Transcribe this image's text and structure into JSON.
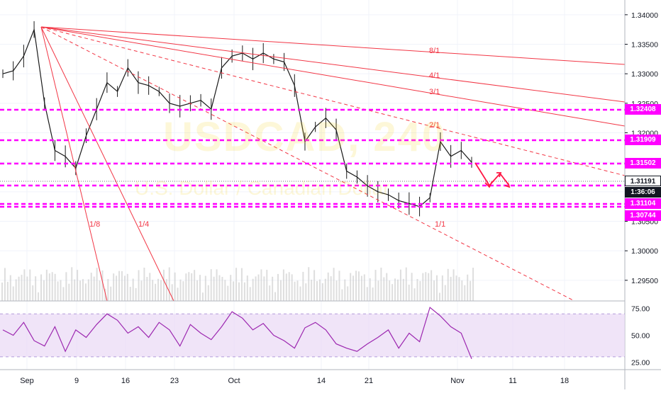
{
  "watermark": {
    "symbol": "USDCAD, 240",
    "name": "U.S. Dollar / Canadian Dollar"
  },
  "colors": {
    "candles": "#1a1a1a",
    "fan": "#f23645",
    "levels": "#ff00ff",
    "rsi": "#9c27b0",
    "rsi_band": "#ead9f5",
    "volume": "#c8c8c8",
    "arrow": "#ff1744"
  },
  "chart_data": [
    {
      "type": "line",
      "subtype": "candlestick",
      "title": "",
      "y_axis_ticks": [
        "1.29500",
        "1.30000",
        "1.30500",
        "1.31000",
        "1.31500",
        "1.32000",
        "1.32500",
        "1.33000",
        "1.33500",
        "1.34000"
      ],
      "ylim": [
        1.2915,
        1.3425
      ],
      "x_axis_ticks": [
        "Sep",
        "9",
        "16",
        "23",
        "Oct",
        "14",
        "21",
        "Nov",
        "11",
        "18"
      ],
      "series": [
        {
          "x": [
            "Sep 2",
            "Sep 3",
            "Sep 4",
            "Sep 5",
            "Sep 6",
            "Sep 9",
            "Sep 10",
            "Sep 11",
            "Sep 12",
            "Sep 13",
            "Sep 16",
            "Sep 17",
            "Sep 18",
            "Sep 19",
            "Sep 20",
            "Sep 23",
            "Sep 24",
            "Sep 25",
            "Sep 26",
            "Sep 27",
            "Sep 30",
            "Oct 1",
            "Oct 2",
            "Oct 3",
            "Oct 4",
            "Oct 7",
            "Oct 8",
            "Oct 9",
            "Oct 10",
            "Oct 11",
            "Oct 14",
            "Oct 15",
            "Oct 16",
            "Oct 17",
            "Oct 18",
            "Oct 21",
            "Oct 22",
            "Oct 23",
            "Oct 24",
            "Oct 25",
            "Oct 28",
            "Oct 29",
            "Oct 30",
            "Oct 31",
            "Nov 1",
            "Nov 4"
          ],
          "values": [
            1.33,
            1.3305,
            1.333,
            1.3375,
            1.325,
            1.317,
            1.316,
            1.314,
            1.3195,
            1.324,
            1.3285,
            1.327,
            1.331,
            1.3285,
            1.328,
            1.327,
            1.325,
            1.3245,
            1.325,
            1.3255,
            1.324,
            1.331,
            1.333,
            1.3335,
            1.3325,
            1.3335,
            1.3325,
            1.332,
            1.328,
            1.3185,
            1.321,
            1.3225,
            1.3205,
            1.3135,
            1.3125,
            1.311,
            1.31,
            1.3095,
            1.3085,
            1.308,
            1.3075,
            1.309,
            1.3185,
            1.316,
            1.317,
            1.315
          ]
        }
      ],
      "annotations": {
        "fan_labels": [
          "8/1",
          "4/1",
          "3/1",
          "2/1",
          "1/1",
          "1/4",
          "1/8"
        ],
        "horizontal_levels": [
          1.32408,
          1.31909,
          1.31502,
          1.31104,
          1.30744
        ],
        "price_tags": [
          "1.32408",
          "1.31909",
          "1.31502",
          "1.31191",
          "1:36:06",
          "1.31104",
          "1.30744"
        ]
      }
    },
    {
      "type": "line",
      "title": "",
      "y_axis_ticks": [
        "25.00",
        "50.00",
        "75.00"
      ],
      "ylim": [
        18,
        82
      ],
      "x_axis_ticks": [
        "Sep",
        "9",
        "16",
        "23",
        "Oct",
        "14",
        "21",
        "Nov",
        "11",
        "18"
      ],
      "series": [
        {
          "values": [
            55,
            50,
            62,
            45,
            40,
            58,
            35,
            55,
            48,
            60,
            70,
            64,
            52,
            58,
            48,
            62,
            55,
            40,
            60,
            52,
            46,
            58,
            72,
            66,
            55,
            61,
            50,
            45,
            38,
            57,
            62,
            55,
            42,
            38,
            35,
            42,
            48,
            55,
            38,
            52,
            44,
            76,
            68,
            58,
            52,
            28
          ]
        }
      ],
      "bands": [
        70,
        30
      ]
    }
  ]
}
